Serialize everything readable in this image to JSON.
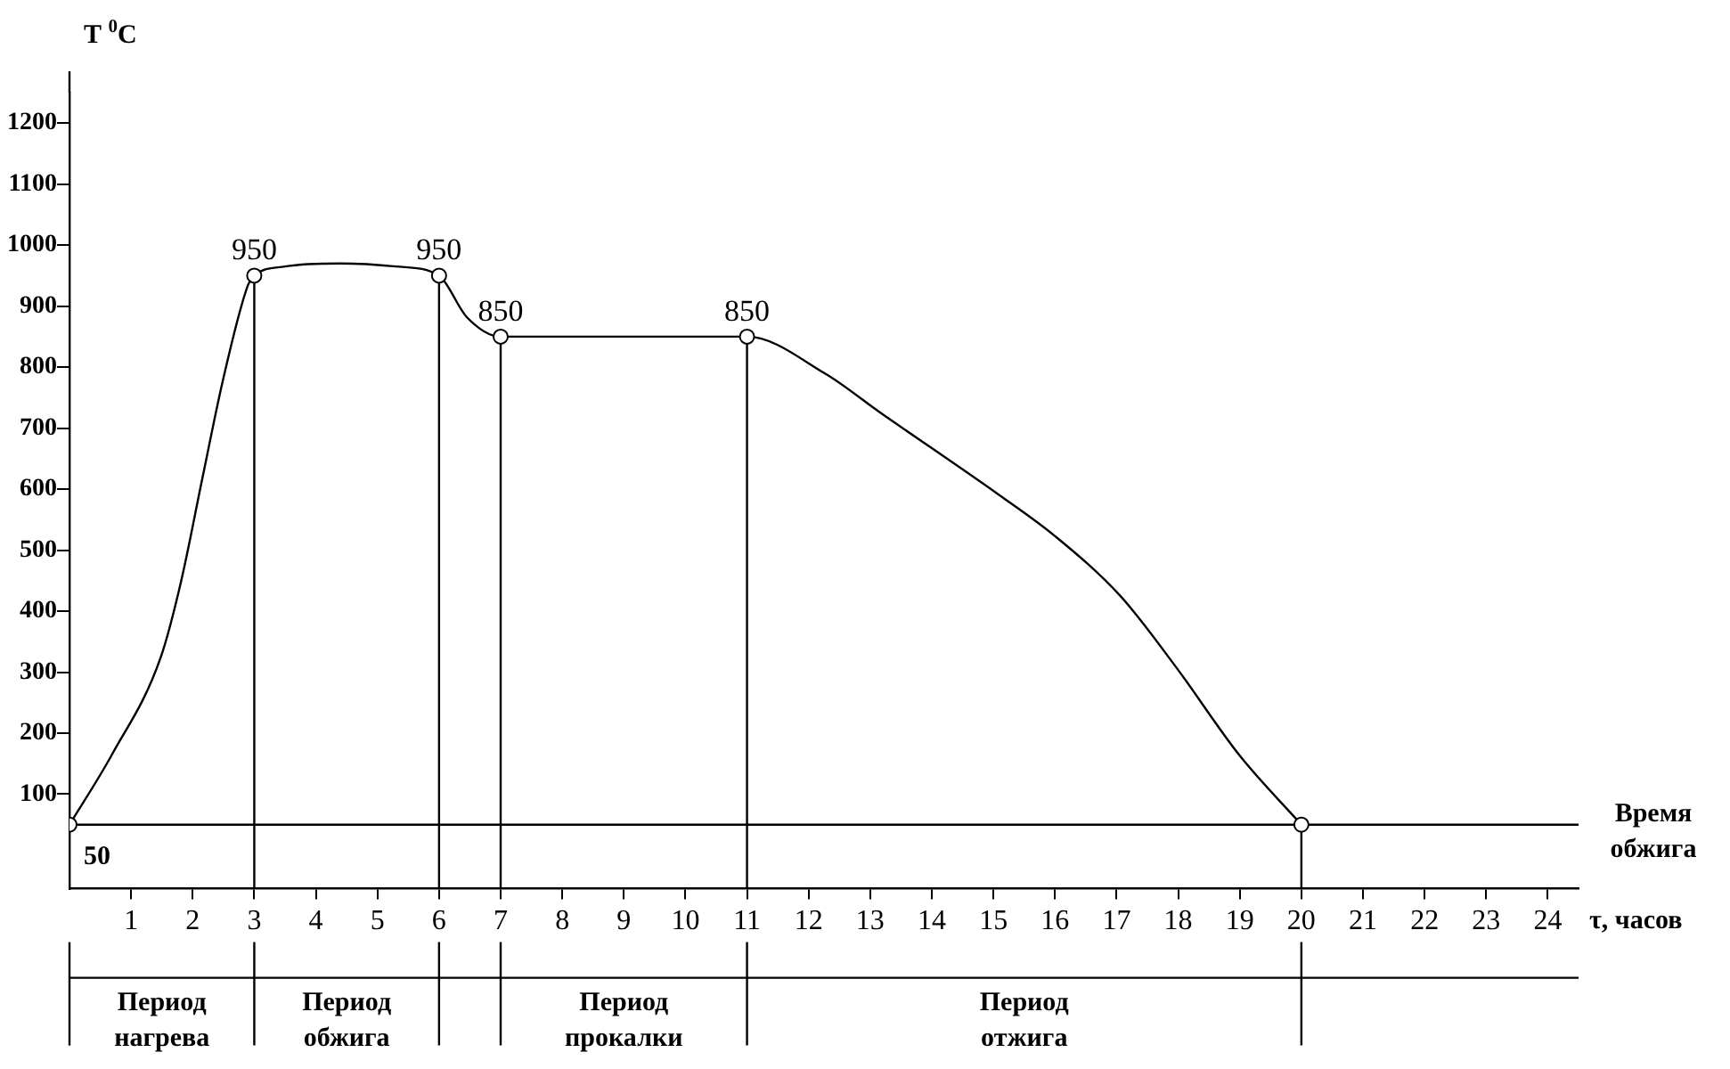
{
  "chart_data": {
    "type": "line",
    "ylabel": "T $^{0}$C",
    "xlabel": "τ, часов",
    "xlim": [
      0,
      24.5
    ],
    "xticks": [
      1,
      2,
      3,
      4,
      5,
      6,
      7,
      8,
      9,
      10,
      11,
      12,
      13,
      14,
      15,
      16,
      17,
      18,
      19,
      20,
      21,
      22,
      23,
      24
    ],
    "ylim": [
      -55,
      1250
    ],
    "yticks": [
      100,
      200,
      300,
      400,
      500,
      600,
      700,
      800,
      900,
      1000,
      1100,
      1200
    ],
    "grid": false,
    "legend": false,
    "series": [
      {
        "type": "line",
        "color": "#000000",
        "marker": "none",
        "x": [
          0,
          0.69,
          1.48,
          1.81,
          2.16,
          2.49,
          2.9,
          3,
          3.5,
          4.4,
          5.3,
          6,
          6.45,
          7,
          9,
          11,
          12.26,
          13.17,
          15.1,
          16,
          17.06,
          17.96,
          19,
          20
        ],
        "values": [
          50,
          165,
          324,
          448,
          619,
          778,
          935,
          950,
          965,
          970,
          965,
          950,
          882,
          850,
          850,
          850,
          790,
          725,
          590,
          523,
          425,
          309,
          163,
          50
        ]
      },
      {
        "type": "scatter",
        "color": "#000000",
        "marker": "circle",
        "x": [
          0,
          3,
          6,
          7,
          11,
          20
        ],
        "values": [
          50,
          950,
          950,
          850,
          850,
          50
        ],
        "value_labels": [
          "50",
          "950",
          "950",
          "850",
          "850",
          null
        ]
      }
    ],
    "ref_lines": [
      {
        "axis": "y",
        "value": 50,
        "label": null
      },
      {
        "axis": "x",
        "value": 3,
        "label": null
      },
      {
        "axis": "x",
        "value": 6,
        "label": null
      },
      {
        "axis": "x",
        "value": 7,
        "label": null
      },
      {
        "axis": "x",
        "value": 11,
        "label": null
      },
      {
        "axis": "x",
        "value": 20,
        "label": null
      }
    ],
    "annotations": [
      "Время обжига",
      "Период нагрева",
      "Период обжига",
      "Период прокалки",
      "Период отжига"
    ]
  }
}
